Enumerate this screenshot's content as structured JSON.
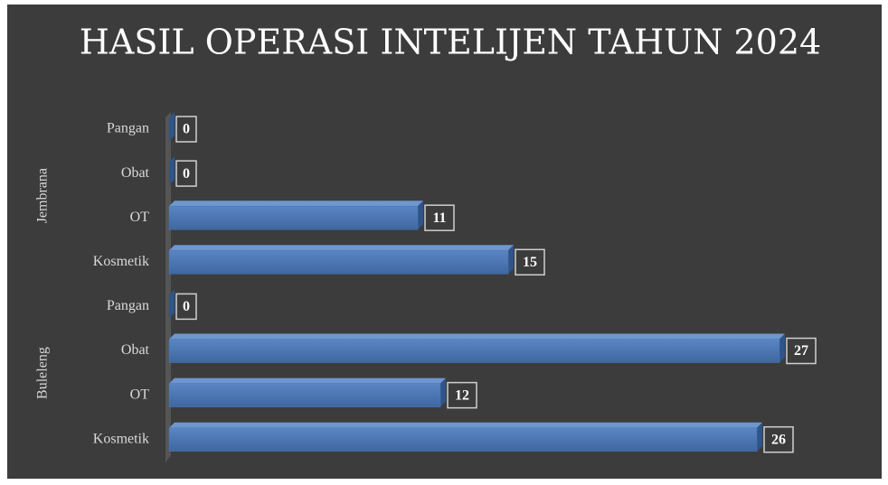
{
  "chart_data": {
    "type": "bar",
    "orientation": "horizontal",
    "title": "HASIL OPERASI INTELIJEN TAHUN 2024",
    "groups": [
      {
        "name": "Jembrana",
        "categories": [
          "Pangan",
          "Obat",
          "OT",
          "Kosmetik"
        ],
        "values": [
          0,
          0,
          11,
          15
        ]
      },
      {
        "name": "Buleleng",
        "categories": [
          "Pangan",
          "Obat",
          "OT",
          "Kosmetik"
        ],
        "values": [
          0,
          27,
          12,
          26
        ]
      }
    ],
    "color": "#4a76b4",
    "xlim": [
      0,
      30
    ]
  }
}
